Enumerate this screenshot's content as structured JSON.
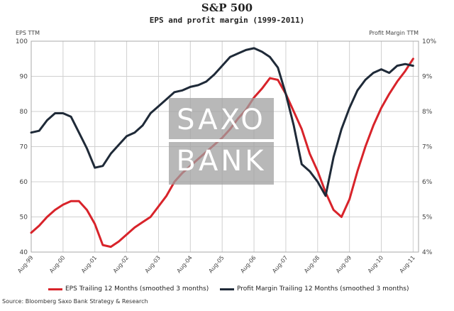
{
  "header": {
    "title": "S&P 500",
    "subtitle": "EPS and profit margin (1999-2011)",
    "left_axis_label": "EPS TTM",
    "right_axis_label": "Profit Margin TTM"
  },
  "watermark": {
    "line1": "SAXO",
    "line2": "BANK"
  },
  "source": "Source: Bloomberg Saxo Bank Strategy & Research",
  "colors": {
    "eps": "#d8232a",
    "margin": "#1f2a38",
    "grid": "#d0d0d0",
    "frame": "#aaaaaa"
  },
  "chart_data": {
    "type": "line",
    "x_ticks": [
      "Aug-99",
      "Aug-00",
      "Aug-01",
      "Aug-02",
      "Aug-03",
      "Aug-04",
      "Aug-05",
      "Aug-06",
      "Aug-07",
      "Aug-08",
      "Aug-09",
      "Aug-10",
      "Aug-11"
    ],
    "y_left": {
      "label": "EPS TTM",
      "ylim": [
        40,
        100
      ],
      "ticks": [
        "40",
        "50",
        "60",
        "70",
        "80",
        "90",
        "100"
      ]
    },
    "y_right": {
      "label": "Profit Margin TTM",
      "ylim": [
        4,
        10
      ],
      "ticks": [
        "4%",
        "5%",
        "6%",
        "7%",
        "8%",
        "9%",
        "10%"
      ]
    },
    "grid": true,
    "legend_position": "bottom",
    "series": [
      {
        "name": "EPS Trailing 12 Months (smoothed 3 months)",
        "axis": "left",
        "x": [
          1999.58,
          1999.83,
          2000.08,
          2000.33,
          2000.58,
          2000.83,
          2001.08,
          2001.33,
          2001.58,
          2001.83,
          2002.08,
          2002.33,
          2002.58,
          2002.83,
          2003.08,
          2003.33,
          2003.58,
          2003.83,
          2004.08,
          2004.33,
          2004.58,
          2004.83,
          2005.08,
          2005.33,
          2005.58,
          2005.83,
          2006.08,
          2006.33,
          2006.58,
          2006.83,
          2007.08,
          2007.33,
          2007.58,
          2007.83,
          2008.08,
          2008.33,
          2008.58,
          2008.83,
          2009.08,
          2009.33,
          2009.58,
          2009.83,
          2010.08,
          2010.33,
          2010.58,
          2010.83,
          2011.08,
          2011.33,
          2011.58
        ],
        "values": [
          45.5,
          47.5,
          50,
          52,
          53.5,
          54.5,
          54.5,
          52,
          48,
          42,
          41.5,
          43,
          45,
          47,
          48.5,
          50,
          53,
          56,
          60,
          62.5,
          64.5,
          66.5,
          68.5,
          70.5,
          72.5,
          75,
          78,
          80.5,
          84,
          86.5,
          89.5,
          89,
          85,
          80,
          75,
          68,
          63,
          57,
          52,
          50,
          55,
          63,
          70,
          76,
          81,
          85,
          88.5,
          91.5,
          95
        ]
      },
      {
        "name": "Profit Margin Trailing 12 Months (smoothed 3 months)",
        "axis": "right",
        "x": [
          1999.58,
          1999.83,
          2000.08,
          2000.33,
          2000.58,
          2000.83,
          2001.08,
          2001.33,
          2001.58,
          2001.83,
          2002.08,
          2002.33,
          2002.58,
          2002.83,
          2003.08,
          2003.33,
          2003.58,
          2003.83,
          2004.08,
          2004.33,
          2004.58,
          2004.83,
          2005.08,
          2005.33,
          2005.58,
          2005.83,
          2006.08,
          2006.33,
          2006.58,
          2006.83,
          2007.08,
          2007.33,
          2007.58,
          2007.83,
          2008.08,
          2008.33,
          2008.58,
          2008.83,
          2009.08,
          2009.33,
          2009.58,
          2009.83,
          2010.08,
          2010.33,
          2010.58,
          2010.83,
          2011.08,
          2011.33,
          2011.58
        ],
        "values": [
          7.4,
          7.45,
          7.75,
          7.95,
          7.95,
          7.85,
          7.4,
          6.95,
          6.4,
          6.45,
          6.8,
          7.05,
          7.3,
          7.4,
          7.6,
          7.95,
          8.15,
          8.35,
          8.55,
          8.6,
          8.7,
          8.75,
          8.85,
          9.05,
          9.3,
          9.55,
          9.65,
          9.75,
          9.8,
          9.7,
          9.55,
          9.25,
          8.5,
          7.6,
          6.5,
          6.3,
          6.0,
          5.6,
          6.7,
          7.5,
          8.1,
          8.6,
          8.9,
          9.1,
          9.2,
          9.1,
          9.3,
          9.35,
          9.3
        ]
      }
    ]
  }
}
